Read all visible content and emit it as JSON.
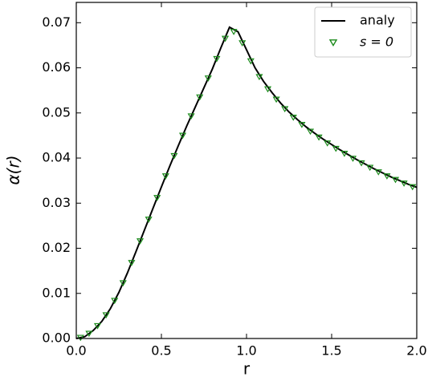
{
  "chart_data": {
    "type": "line",
    "xlabel": "r",
    "ylabel": "α(r)",
    "xlim": [
      0,
      2
    ],
    "ylim": [
      0,
      0.0745
    ],
    "xticks": [
      {
        "value": 0,
        "label": "0.0"
      },
      {
        "value": 0.5,
        "label": "0.5"
      },
      {
        "value": 1,
        "label": "1.0"
      },
      {
        "value": 1.5,
        "label": "1.5"
      },
      {
        "value": 2,
        "label": "2.0"
      }
    ],
    "yticks": [
      {
        "value": 0,
        "label": "0.00"
      },
      {
        "value": 0.01,
        "label": "0.01"
      },
      {
        "value": 0.02,
        "label": "0.02"
      },
      {
        "value": 0.03,
        "label": "0.03"
      },
      {
        "value": 0.04,
        "label": "0.04"
      },
      {
        "value": 0.05,
        "label": "0.05"
      },
      {
        "value": 0.06,
        "label": "0.06"
      },
      {
        "value": 0.07,
        "label": "0.07"
      }
    ],
    "legend": "upper right",
    "series": [
      {
        "name": "analy",
        "color": "#000000",
        "style": "line",
        "x": [
          0,
          0.05,
          0.1,
          0.15,
          0.2,
          0.25,
          0.3,
          0.35,
          0.4,
          0.45,
          0.5,
          0.55,
          0.6,
          0.65,
          0.7,
          0.75,
          0.8,
          0.85,
          0.9,
          0.95,
          1.0,
          1.05,
          1.1,
          1.15,
          1.2,
          1.25,
          1.3,
          1.35,
          1.4,
          1.45,
          1.5,
          1.55,
          1.6,
          1.65,
          1.7,
          1.75,
          1.8,
          1.85,
          1.9,
          1.95,
          2.0
        ],
        "values": [
          0,
          0.0004,
          0.0018,
          0.0038,
          0.0066,
          0.0102,
          0.0145,
          0.0192,
          0.024,
          0.0288,
          0.0336,
          0.0383,
          0.0428,
          0.0472,
          0.0514,
          0.0556,
          0.0598,
          0.0645,
          0.069,
          0.068,
          0.064,
          0.06,
          0.057,
          0.0545,
          0.0522,
          0.0502,
          0.0485,
          0.0469,
          0.0455,
          0.0442,
          0.043,
          0.0418,
          0.0407,
          0.0396,
          0.0386,
          0.0376,
          0.0367,
          0.0358,
          0.035,
          0.0342,
          0.0335
        ]
      },
      {
        "name": "s = 0",
        "color": "#1a8a1a",
        "style": "marker",
        "x": [
          0.025,
          0.075,
          0.125,
          0.175,
          0.225,
          0.275,
          0.325,
          0.375,
          0.425,
          0.475,
          0.525,
          0.575,
          0.625,
          0.675,
          0.725,
          0.775,
          0.825,
          0.875,
          0.925,
          0.975,
          1.025,
          1.075,
          1.125,
          1.175,
          1.225,
          1.275,
          1.325,
          1.375,
          1.425,
          1.475,
          1.525,
          1.575,
          1.625,
          1.675,
          1.725,
          1.775,
          1.825,
          1.875,
          1.925,
          1.975
        ],
        "values": [
          0.0002,
          0.0011,
          0.0028,
          0.0052,
          0.0084,
          0.0123,
          0.0168,
          0.0216,
          0.0264,
          0.0312,
          0.036,
          0.0405,
          0.045,
          0.0493,
          0.0535,
          0.0577,
          0.062,
          0.0665,
          0.068,
          0.0655,
          0.0615,
          0.058,
          0.0553,
          0.053,
          0.0509,
          0.049,
          0.0474,
          0.0459,
          0.0446,
          0.0433,
          0.0421,
          0.041,
          0.0399,
          0.0389,
          0.0379,
          0.0369,
          0.036,
          0.0352,
          0.0344,
          0.0336
        ]
      }
    ]
  }
}
